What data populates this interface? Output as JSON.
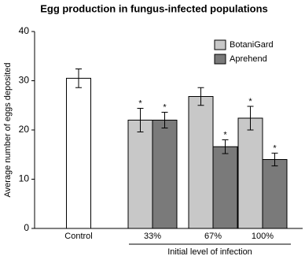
{
  "chart_data": {
    "type": "bar",
    "title": "Egg production in fungus-infected populations",
    "y_label": "Average number of eggs deposited",
    "x_label": "Initial level of infection",
    "categories": [
      "Control",
      "33%",
      "67%",
      "100%"
    ],
    "control": {
      "value": 30.5,
      "error": 1.9,
      "color": "#ffffff"
    },
    "series": [
      {
        "name": "BotaniGard",
        "color": "#c8c8c8",
        "values": [
          null,
          22,
          26.8,
          22.4
        ],
        "errors": [
          null,
          2.4,
          1.8,
          2.4
        ],
        "markers": [
          null,
          "*",
          null,
          "*"
        ]
      },
      {
        "name": "Aprehend",
        "color": "#7a7a7a",
        "values": [
          null,
          22,
          16.6,
          14
        ],
        "errors": [
          null,
          1.6,
          1.4,
          1.3
        ],
        "markers": [
          null,
          "*",
          "*",
          "*"
        ]
      }
    ],
    "ylim": [
      0,
      40
    ],
    "yticks": [
      0,
      10,
      20,
      30,
      40
    ],
    "legend": "top-right"
  }
}
